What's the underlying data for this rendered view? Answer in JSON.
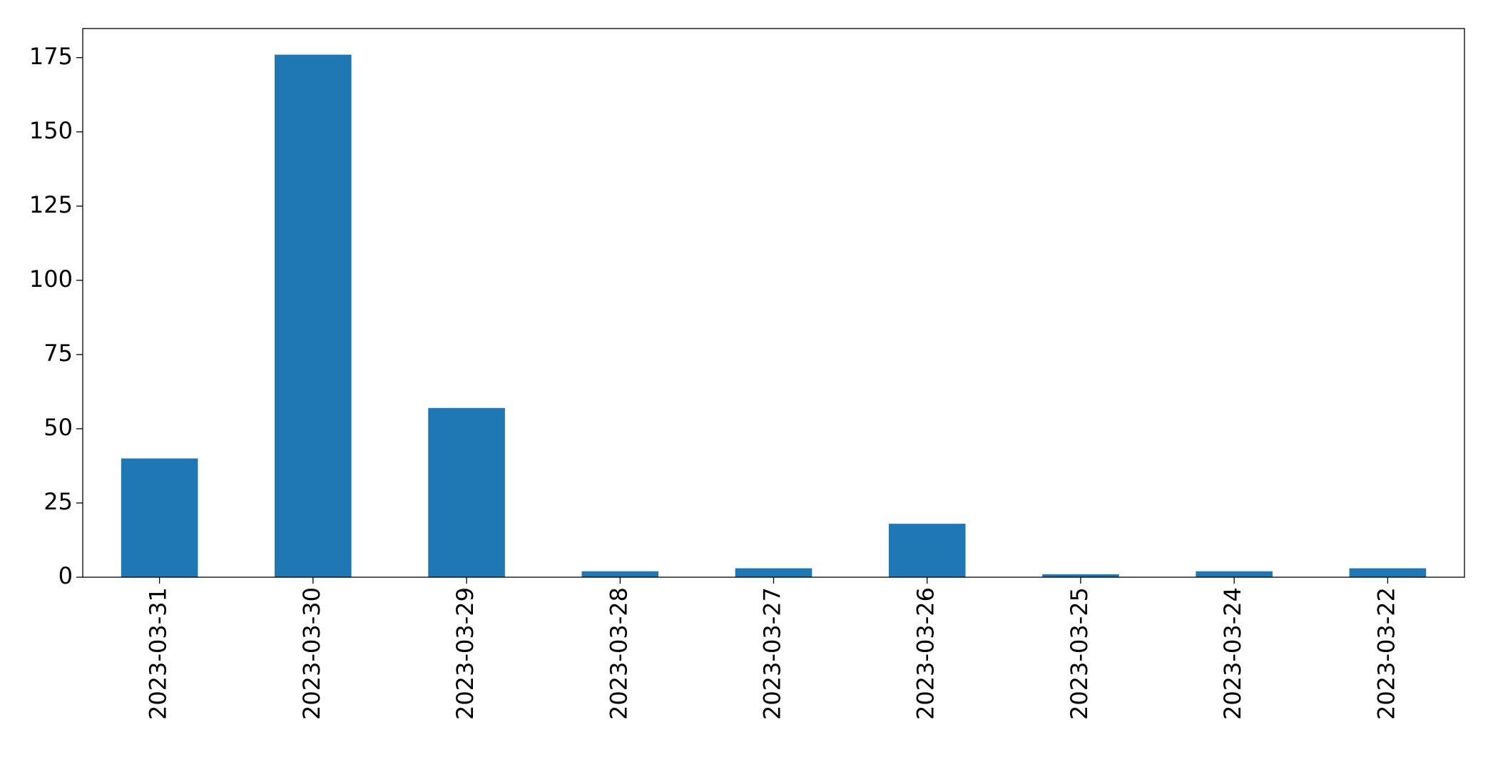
{
  "chart_data": {
    "type": "bar",
    "categories": [
      "2023-03-31",
      "2023-03-30",
      "2023-03-29",
      "2023-03-28",
      "2023-03-27",
      "2023-03-26",
      "2023-03-25",
      "2023-03-24",
      "2023-03-22"
    ],
    "values": [
      40,
      176,
      57,
      2,
      3,
      18,
      1,
      2,
      3
    ],
    "color": "#1f77b4",
    "ylim": [
      0,
      184.8
    ],
    "yticks": [
      0,
      25,
      50,
      75,
      100,
      125,
      150,
      175
    ],
    "grid": false
  }
}
